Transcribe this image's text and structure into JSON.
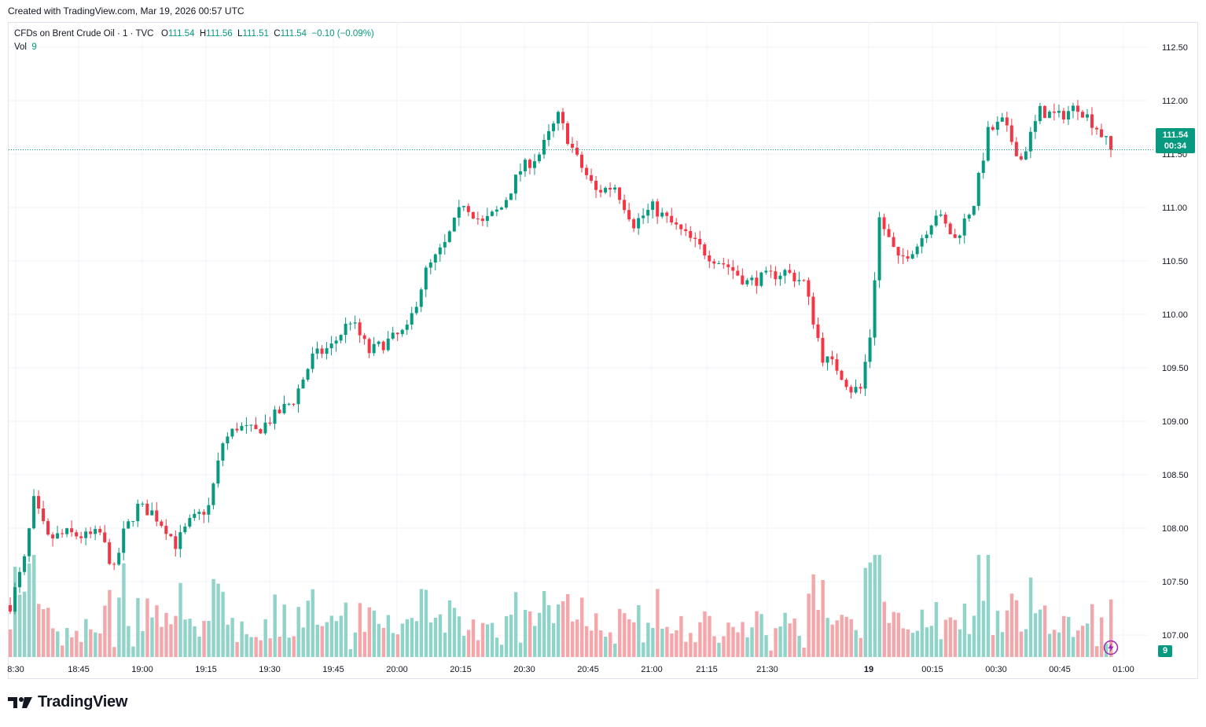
{
  "header": {
    "created_text": "Created with TradingView.com, Mar 19, 2026 00:57 UTC"
  },
  "legend": {
    "symbol": "CFDs on Brent Crude Oil · 1 · TVC",
    "o_label": "O",
    "o_value": "111.54",
    "h_label": "H",
    "h_value": "111.56",
    "l_label": "L",
    "l_value": "111.51",
    "c_label": "C",
    "c_value": "111.54",
    "change": "−0.10 (−0.09%)",
    "vol_label": "Vol",
    "vol_value": "9"
  },
  "price_tag": {
    "price": "111.54",
    "countdown": "00:34"
  },
  "volume_tag": "9",
  "brand": {
    "name": "TradingView",
    "logo_icon": "tradingview-logo-icon"
  },
  "colors": {
    "up": "#089981",
    "down": "#F23645",
    "up_vol": "#8fd3c9",
    "down_vol": "#f4a7ab",
    "grid": "#f0f3fa"
  },
  "chart_data": {
    "type": "candlestick",
    "title": "CFDs on Brent Crude Oil · 1 · TVC",
    "interval": "1 minute",
    "ylim": [
      106.78,
      112.72
    ],
    "price_ticks": [
      "112.50",
      "112.00",
      "111.50",
      "111.00",
      "110.50",
      "110.00",
      "109.50",
      "109.00",
      "108.50",
      "108.00",
      "107.50",
      "107.00"
    ],
    "time_ticks": [
      "8:30",
      "18:45",
      "19:00",
      "19:15",
      "19:30",
      "19:45",
      "20:00",
      "20:15",
      "20:30",
      "20:45",
      "21:00",
      "21:15",
      "21:30",
      "19",
      "00:15",
      "00:30",
      "00:45",
      "01:00"
    ],
    "last_price": 111.54,
    "anchors": [
      [
        0,
        107.28
      ],
      [
        3,
        107.7
      ],
      [
        5,
        108.25
      ],
      [
        8,
        107.9
      ],
      [
        12,
        107.95
      ],
      [
        16,
        107.92
      ],
      [
        19,
        107.95
      ],
      [
        22,
        107.6
      ],
      [
        24,
        107.95
      ],
      [
        27,
        108.2
      ],
      [
        30,
        108.15
      ],
      [
        33,
        108.0
      ],
      [
        35,
        107.85
      ],
      [
        38,
        108.05
      ],
      [
        42,
        108.2
      ],
      [
        45,
        108.8
      ],
      [
        48,
        108.95
      ],
      [
        52,
        108.9
      ],
      [
        56,
        109.05
      ],
      [
        60,
        109.2
      ],
      [
        64,
        109.6
      ],
      [
        68,
        109.7
      ],
      [
        72,
        109.95
      ],
      [
        76,
        109.65
      ],
      [
        80,
        109.75
      ],
      [
        84,
        109.85
      ],
      [
        88,
        110.4
      ],
      [
        92,
        110.65
      ],
      [
        96,
        111.05
      ],
      [
        100,
        110.85
      ],
      [
        104,
        111.0
      ],
      [
        108,
        111.35
      ],
      [
        112,
        111.5
      ],
      [
        116,
        111.85
      ],
      [
        120,
        111.45
      ],
      [
        124,
        111.15
      ],
      [
        128,
        111.2
      ],
      [
        132,
        110.85
      ],
      [
        136,
        111.0
      ],
      [
        140,
        110.85
      ],
      [
        144,
        110.7
      ],
      [
        148,
        110.55
      ],
      [
        152,
        110.45
      ],
      [
        156,
        110.3
      ],
      [
        160,
        110.35
      ],
      [
        164,
        110.4
      ],
      [
        168,
        110.3
      ],
      [
        172,
        109.6
      ],
      [
        175,
        109.5
      ],
      [
        178,
        109.3
      ],
      [
        180,
        109.3
      ],
      [
        182,
        109.8
      ],
      [
        184,
        110.9
      ],
      [
        188,
        110.5
      ],
      [
        192,
        110.65
      ],
      [
        196,
        110.95
      ],
      [
        200,
        110.7
      ],
      [
        204,
        111.05
      ],
      [
        207,
        111.7
      ],
      [
        210,
        111.8
      ],
      [
        214,
        111.45
      ],
      [
        218,
        111.9
      ],
      [
        222,
        111.85
      ],
      [
        226,
        111.95
      ],
      [
        230,
        111.75
      ],
      [
        233,
        111.55
      ]
    ],
    "volume_hint": "relative bar heights under price, colored by candle direction"
  }
}
